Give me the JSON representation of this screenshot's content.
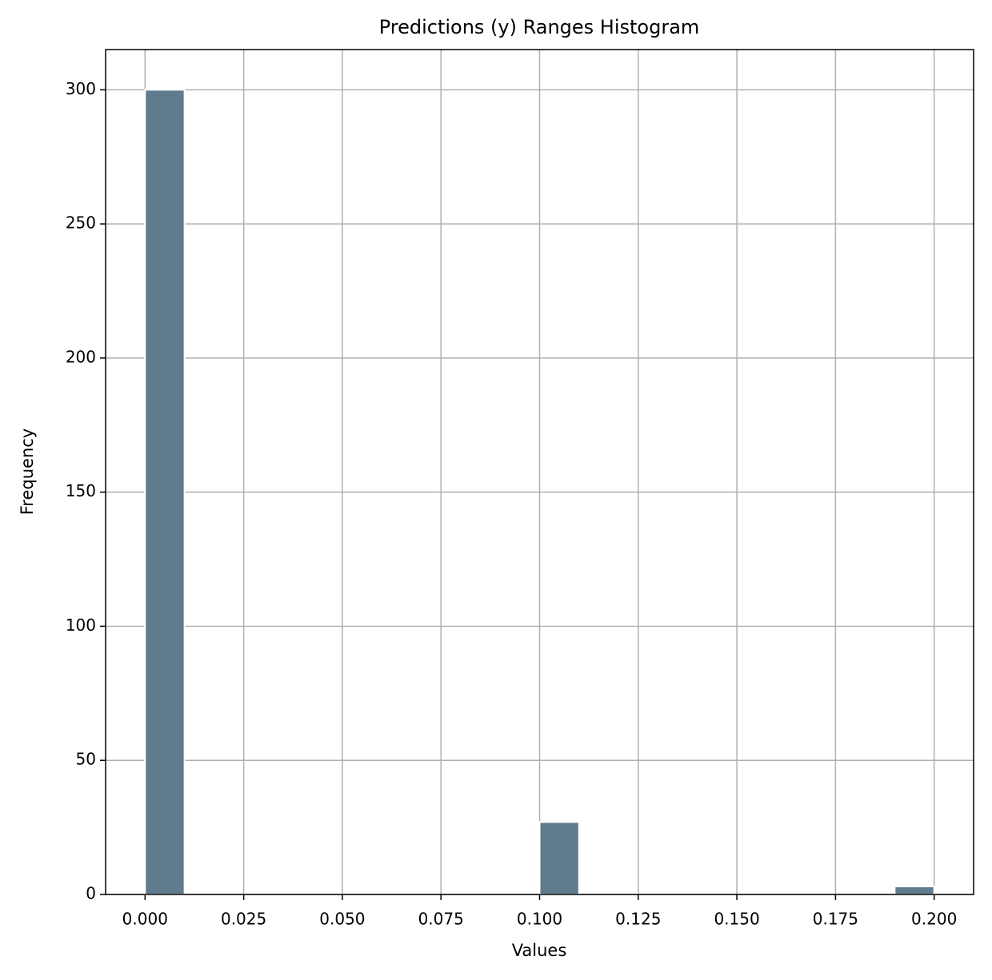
{
  "chart_data": {
    "type": "histogram",
    "title": "Predictions (y) Ranges Histogram",
    "x_label": "Values",
    "y_label": "Frequency",
    "bins": [
      0.0,
      0.01,
      0.02,
      0.03,
      0.04,
      0.05,
      0.06,
      0.07,
      0.08,
      0.09,
      0.1,
      0.11,
      0.12,
      0.13,
      0.14,
      0.15,
      0.16,
      0.17,
      0.18,
      0.19,
      0.2
    ],
    "values": [
      300,
      0,
      0,
      0,
      0,
      0,
      0,
      0,
      0,
      0,
      27,
      0,
      0,
      0,
      0,
      0,
      0,
      0,
      0,
      3
    ],
    "color": "#607b8d",
    "xlim": [
      -0.01,
      0.21
    ],
    "xticks": [
      {
        "value": 0,
        "label": "0.000"
      },
      {
        "value": 0.025,
        "label": "0.025"
      },
      {
        "value": 0.05,
        "label": "0.050"
      },
      {
        "value": 0.075,
        "label": "0.075"
      },
      {
        "value": 0.1,
        "label": "0.100"
      },
      {
        "value": 0.125,
        "label": "0.125"
      },
      {
        "value": 0.15,
        "label": "0.150"
      },
      {
        "value": 0.175,
        "label": "0.175"
      },
      {
        "value": 0.2,
        "label": "0.200"
      }
    ],
    "ylim": [
      0,
      315
    ],
    "yticks": [
      0,
      50,
      100,
      150,
      200,
      250,
      300
    ],
    "grid": true
  }
}
